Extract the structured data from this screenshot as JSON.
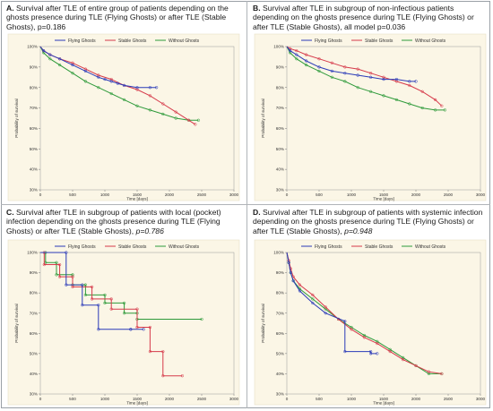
{
  "legend": [
    "Flying Ghosts",
    "Stable Ghosts",
    "Without Ghosts"
  ],
  "colors": {
    "flying": "#2b3bb8",
    "stable": "#d63a4a",
    "without": "#2e9a3a",
    "background": "#fbf6e6"
  },
  "chart_data": [
    {
      "type": "line",
      "panel": "A",
      "title_letter": "A.",
      "title": "Survival after TLE of entire group of patients depending on the ghosts presence during TLE (Flying Ghosts) or after TLE (Stable Ghosts),",
      "p_value": "p=0.186",
      "p_italic": false,
      "xlabel": "Time [days]",
      "ylabel": "Probability of survival",
      "xlim": [
        0,
        3000
      ],
      "ylim": [
        30,
        100
      ],
      "x_ticks": [
        0,
        500,
        1000,
        1500,
        2000,
        2500,
        3000
      ],
      "y_ticks": [
        30,
        40,
        50,
        60,
        70,
        80,
        90,
        100
      ],
      "y_tick_labels": [
        "30%",
        "40%",
        "50%",
        "60%",
        "70%",
        "80%",
        "90%",
        "100%"
      ],
      "legend_position": "top",
      "series": [
        {
          "name": "Flying Ghosts",
          "x": [
            0,
            50,
            150,
            300,
            500,
            700,
            900,
            1000,
            1100,
            1200,
            1300,
            1500,
            1700,
            1800
          ],
          "y": [
            100,
            98,
            96,
            94,
            91,
            88,
            85,
            84,
            83,
            82,
            81,
            80,
            80,
            80
          ]
        },
        {
          "name": "Stable Ghosts",
          "x": [
            0,
            50,
            150,
            300,
            500,
            700,
            900,
            1100,
            1300,
            1500,
            1700,
            1900,
            2100,
            2300,
            2400
          ],
          "y": [
            100,
            98,
            96,
            94,
            92,
            89,
            86,
            84,
            81,
            79,
            76,
            72,
            68,
            64,
            62
          ]
        },
        {
          "name": "Without Ghosts",
          "x": [
            0,
            50,
            150,
            300,
            500,
            700,
            900,
            1100,
            1300,
            1500,
            1700,
            1900,
            2100,
            2300,
            2450
          ],
          "y": [
            100,
            97,
            94,
            91,
            87,
            83,
            80,
            77,
            74,
            71,
            69,
            67,
            65,
            64,
            64
          ]
        }
      ]
    },
    {
      "type": "line",
      "panel": "B",
      "title_letter": "B.",
      "title": "Survival after TLE in subgroup of non-infectious patients depending on the ghosts presence during TLE (Flying Ghosts) or after TLE (Stable Ghosts), all model",
      "p_value": "p=0.036",
      "p_italic": false,
      "xlabel": "Time [days]",
      "ylabel": "Probability of survival",
      "xlim": [
        0,
        3000
      ],
      "ylim": [
        30,
        100
      ],
      "x_ticks": [
        0,
        500,
        1000,
        1500,
        2000,
        2500,
        3000
      ],
      "y_ticks": [
        30,
        40,
        50,
        60,
        70,
        80,
        90,
        100
      ],
      "y_tick_labels": [
        "30%",
        "40%",
        "50%",
        "60%",
        "70%",
        "80%",
        "90%",
        "100%"
      ],
      "legend_position": "top",
      "series": [
        {
          "name": "Flying Ghosts",
          "x": [
            0,
            50,
            150,
            300,
            500,
            700,
            900,
            1100,
            1300,
            1500,
            1700,
            1900,
            2000
          ],
          "y": [
            100,
            98,
            96,
            93,
            90,
            88,
            87,
            86,
            85,
            84,
            84,
            83,
            83
          ]
        },
        {
          "name": "Stable Ghosts",
          "x": [
            0,
            50,
            150,
            300,
            500,
            700,
            900,
            1100,
            1300,
            1500,
            1700,
            1900,
            2100,
            2300,
            2400
          ],
          "y": [
            100,
            99,
            98,
            96,
            94,
            92,
            90,
            89,
            87,
            85,
            83,
            81,
            78,
            74,
            71
          ]
        },
        {
          "name": "Without Ghosts",
          "x": [
            0,
            50,
            150,
            300,
            500,
            700,
            900,
            1100,
            1300,
            1500,
            1700,
            1900,
            2100,
            2300,
            2450
          ],
          "y": [
            100,
            97,
            94,
            91,
            88,
            85,
            83,
            80,
            78,
            76,
            74,
            72,
            70,
            69,
            69
          ]
        }
      ]
    },
    {
      "type": "line",
      "panel": "C",
      "title_letter": "C.",
      "title": "Survival after TLE in subgroup of patients with local (pocket) infection depending on the ghosts presence during TLE (Flying Ghosts) or after TLE (Stable Ghosts),",
      "p_value": "p=0.786",
      "p_italic": true,
      "xlabel": "Time [days]",
      "ylabel": "Probability of survival",
      "xlim": [
        0,
        3000
      ],
      "ylim": [
        30,
        100
      ],
      "x_ticks": [
        0,
        500,
        1000,
        1500,
        2000,
        2500,
        3000
      ],
      "y_ticks": [
        30,
        40,
        50,
        60,
        70,
        80,
        90,
        100
      ],
      "y_tick_labels": [
        "30%",
        "40%",
        "50%",
        "60%",
        "70%",
        "80%",
        "90%",
        "100%"
      ],
      "legend_position": "top",
      "series": [
        {
          "name": "Flying Ghosts",
          "x": [
            0,
            400,
            400,
            650,
            650,
            900,
            900,
            1400,
            1400,
            1600
          ],
          "y": [
            100,
            100,
            84,
            84,
            74,
            74,
            62,
            62,
            62,
            62
          ]
        },
        {
          "name": "Stable Ghosts",
          "x": [
            0,
            60,
            60,
            300,
            300,
            500,
            500,
            800,
            800,
            1100,
            1100,
            1500,
            1500,
            1700,
            1700,
            1900,
            1900,
            2200
          ],
          "y": [
            100,
            100,
            94,
            94,
            88,
            88,
            83,
            83,
            77,
            77,
            72,
            72,
            63,
            63,
            51,
            51,
            39,
            39
          ]
        },
        {
          "name": "Without Ghosts",
          "x": [
            0,
            80,
            80,
            250,
            250,
            500,
            500,
            700,
            700,
            1000,
            1000,
            1300,
            1300,
            1500,
            1500,
            2500
          ],
          "y": [
            100,
            100,
            95,
            95,
            89,
            89,
            84,
            84,
            79,
            79,
            75,
            75,
            70,
            70,
            67,
            67
          ]
        }
      ]
    },
    {
      "type": "line",
      "panel": "D",
      "title_letter": "D.",
      "title": "Survival  after  TLE in subgroup of patients  with systemic infection depending on the ghosts presence during TLE (Flying Ghosts) or after TLE (Stable Ghosts),",
      "p_value": "p=0.948",
      "p_italic": true,
      "xlabel": "Time [days]",
      "ylabel": "Probability of survival",
      "xlim": [
        0,
        3000
      ],
      "ylim": [
        30,
        100
      ],
      "x_ticks": [
        0,
        500,
        1000,
        1500,
        2000,
        2500,
        3000
      ],
      "y_ticks": [
        30,
        40,
        50,
        60,
        70,
        80,
        90,
        100
      ],
      "y_tick_labels": [
        "30%",
        "40%",
        "50%",
        "60%",
        "70%",
        "80%",
        "90%",
        "100%"
      ],
      "legend_position": "top",
      "series": [
        {
          "name": "Flying Ghosts",
          "x": [
            0,
            30,
            60,
            100,
            200,
            400,
            600,
            900,
            900,
            1300,
            1300,
            1400
          ],
          "y": [
            100,
            95,
            90,
            86,
            81,
            75,
            70,
            66,
            51,
            51,
            50,
            50
          ]
        },
        {
          "name": "Stable Ghosts",
          "x": [
            0,
            30,
            60,
            100,
            200,
            400,
            600,
            800,
            1000,
            1200,
            1400,
            1600,
            1800,
            2000,
            2200,
            2400
          ],
          "y": [
            100,
            96,
            92,
            88,
            84,
            79,
            73,
            67,
            62,
            58,
            55,
            51,
            47,
            44,
            41,
            40
          ]
        },
        {
          "name": "Without Ghosts",
          "x": [
            0,
            30,
            60,
            100,
            200,
            400,
            600,
            800,
            1000,
            1200,
            1400,
            1600,
            1800,
            2000,
            2200,
            2400
          ],
          "y": [
            100,
            95,
            90,
            86,
            82,
            77,
            72,
            67,
            63,
            59,
            56,
            52,
            48,
            44,
            40,
            40
          ]
        }
      ]
    }
  ]
}
